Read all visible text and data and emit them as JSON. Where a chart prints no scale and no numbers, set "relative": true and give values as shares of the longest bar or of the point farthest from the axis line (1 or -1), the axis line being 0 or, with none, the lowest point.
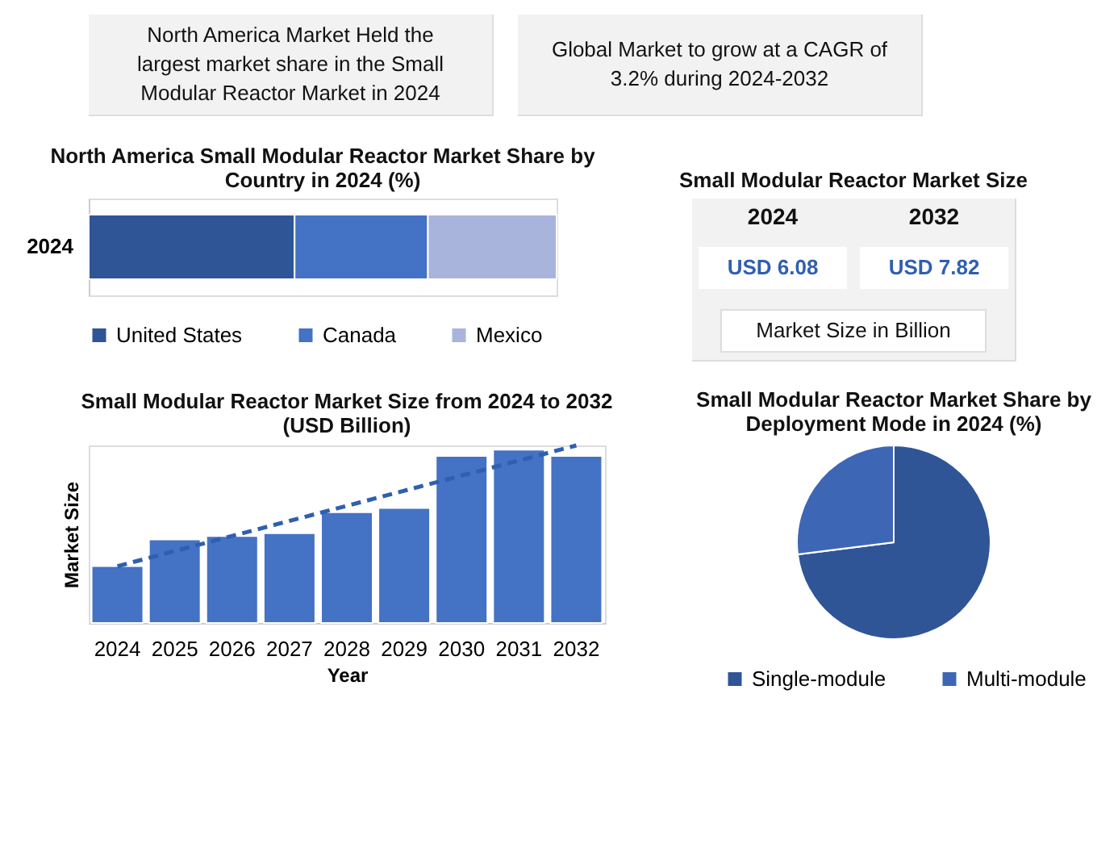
{
  "chart_data": [
    {
      "type": "other",
      "annotations": [
        "North America Market Held the largest market share in the Small Modular Reactor Market in 2024",
        "Global Market to grow at a CAGR of 3.2% during 2024-2032"
      ]
    },
    {
      "type": "bar",
      "orientation": "horizontal",
      "stacked": true,
      "relative": true,
      "title": "North America Small Modular Reactor Market Share by Country in 2024 (%)",
      "categories": [
        "2024"
      ],
      "legend": "bottom",
      "series": [
        {
          "name": "United States",
          "color": "#2f5597",
          "values": [
            0.44
          ]
        },
        {
          "name": "Canada",
          "color": "#4472c4",
          "values": [
            0.285
          ]
        },
        {
          "name": "Mexico",
          "color": "#a9b4dc",
          "values": [
            0.275
          ]
        }
      ]
    },
    {
      "type": "other",
      "title": "Small Modular Reactor Market Size",
      "categories": [
        "2024",
        "2032"
      ],
      "annotations": [
        "USD 6.08",
        "USD 7.82",
        "Market Size in Billion"
      ]
    },
    {
      "type": "bar",
      "relative": true,
      "title": "Small Modular Reactor Market Size from 2024 to 2032 (USD Billion)",
      "xlabel": "Year",
      "ylabel": "Market Size",
      "grid": false,
      "categories": [
        "2024",
        "2025",
        "2026",
        "2027",
        "2028",
        "2029",
        "2030",
        "2031",
        "2032"
      ],
      "series": [
        {
          "color": "#4472c4",
          "values": [
            0.32,
            0.47,
            0.49,
            0.506,
            0.624,
            0.648,
            0.941,
            0.976,
            0.941
          ]
        },
        {
          "type": "line",
          "color": "#2f5fb0",
          "line_style": "dashed",
          "values": [
            0.32,
            null,
            null,
            null,
            null,
            null,
            null,
            null,
            1
          ]
        }
      ]
    },
    {
      "type": "pie",
      "title": "Small Modular Reactor Market Share by Deployment Mode in  2024 (%)",
      "categories": [
        "Single-module",
        "Multi-module"
      ],
      "values": [
        73,
        27
      ],
      "colors": [
        "#2f5597",
        "#3d66b5"
      ],
      "legend": "bottom"
    }
  ]
}
